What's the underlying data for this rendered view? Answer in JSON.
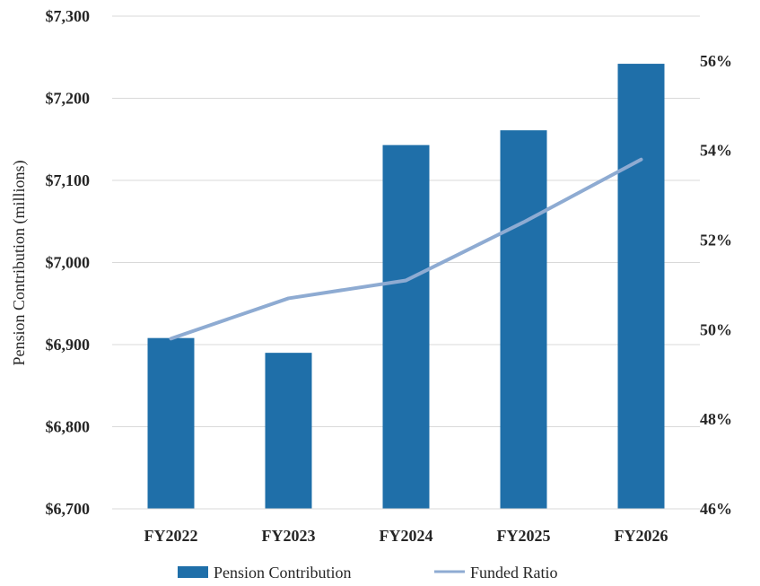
{
  "chart_data": {
    "type": "bar",
    "categories": [
      "FY2022",
      "FY2023",
      "FY2024",
      "FY2025",
      "FY2026"
    ],
    "series": [
      {
        "name": "Pension Contribution",
        "type": "bar",
        "axis": "left",
        "color": "#1f6fa9",
        "values": [
          6908,
          6890,
          7143,
          7161,
          7242
        ]
      },
      {
        "name": "Funded Ratio",
        "type": "line",
        "axis": "right",
        "color": "#8eabd2",
        "values": [
          49.8,
          50.7,
          51.1,
          52.4,
          53.8
        ]
      }
    ],
    "ylabel": "Pension Contribution (millions)",
    "ylim": [
      6700,
      7300
    ],
    "yticks": [
      "$6,700",
      "$6,800",
      "$6,900",
      "$7,000",
      "$7,100",
      "$7,200",
      "$7,300"
    ],
    "y2lim": [
      46,
      57
    ],
    "y2ticks": [
      "46%",
      "48%",
      "50%",
      "52%",
      "54%",
      "56%"
    ],
    "grid": true,
    "legend": "bottom"
  }
}
